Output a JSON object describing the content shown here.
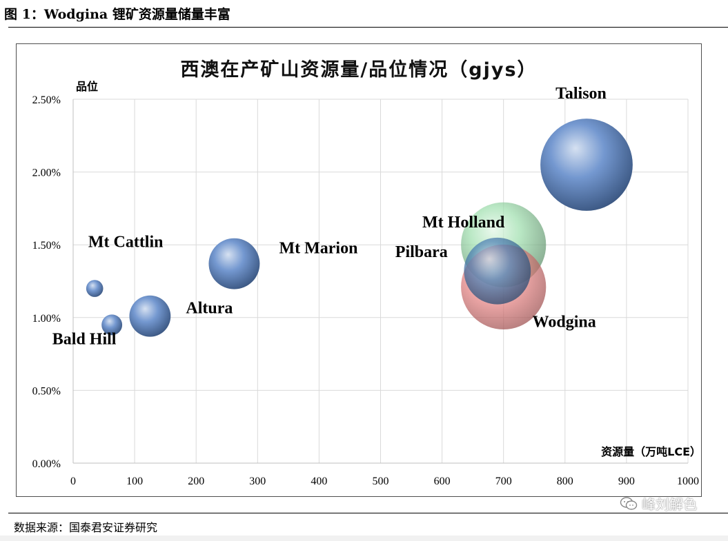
{
  "figure": {
    "caption": "图 1：Wodgina 锂矿资源量储量丰富",
    "source": "数据来源：国泰君安证券研究",
    "watermark": "峰刘解色"
  },
  "chart_data": {
    "type": "bubble",
    "title": "西澳在产矿山资源量/品位情况（gjys）",
    "xlabel": "资源量（万吨LCE）",
    "ylabel": "品位",
    "xlim": [
      0,
      1000
    ],
    "ylim": [
      0,
      0.025
    ],
    "x_ticks": [
      "0",
      "100",
      "200",
      "300",
      "400",
      "500",
      "600",
      "700",
      "800",
      "900",
      "1000"
    ],
    "y_ticks": [
      "0.00%",
      "0.50%",
      "1.00%",
      "1.50%",
      "2.00%",
      "2.50%"
    ],
    "grid": true,
    "legend": "none",
    "series": [
      {
        "name": "Mt Cattlin",
        "x": 35,
        "y": 0.012,
        "size": 14,
        "color": "#5b86c8"
      },
      {
        "name": "Bald Hill",
        "x": 63,
        "y": 0.0095,
        "size": 17,
        "color": "#5b86c8"
      },
      {
        "name": "Altura",
        "x": 125,
        "y": 0.0101,
        "size": 34,
        "color": "#5b86c8"
      },
      {
        "name": "Mt Marion",
        "x": 262,
        "y": 0.0137,
        "size": 42,
        "color": "#5b86c8"
      },
      {
        "name": "Mt Holland",
        "x": 700,
        "y": 0.015,
        "size": 70,
        "color": "#8ed9a0"
      },
      {
        "name": "Pilbara",
        "x": 690,
        "y": 0.0132,
        "size": 55,
        "color": "#2e6aa8"
      },
      {
        "name": "Wodgina",
        "x": 700,
        "y": 0.0121,
        "size": 70,
        "color": "#f07878"
      },
      {
        "name": "Talison",
        "x": 835,
        "y": 0.0205,
        "size": 76,
        "color": "#5b86c8"
      }
    ]
  }
}
